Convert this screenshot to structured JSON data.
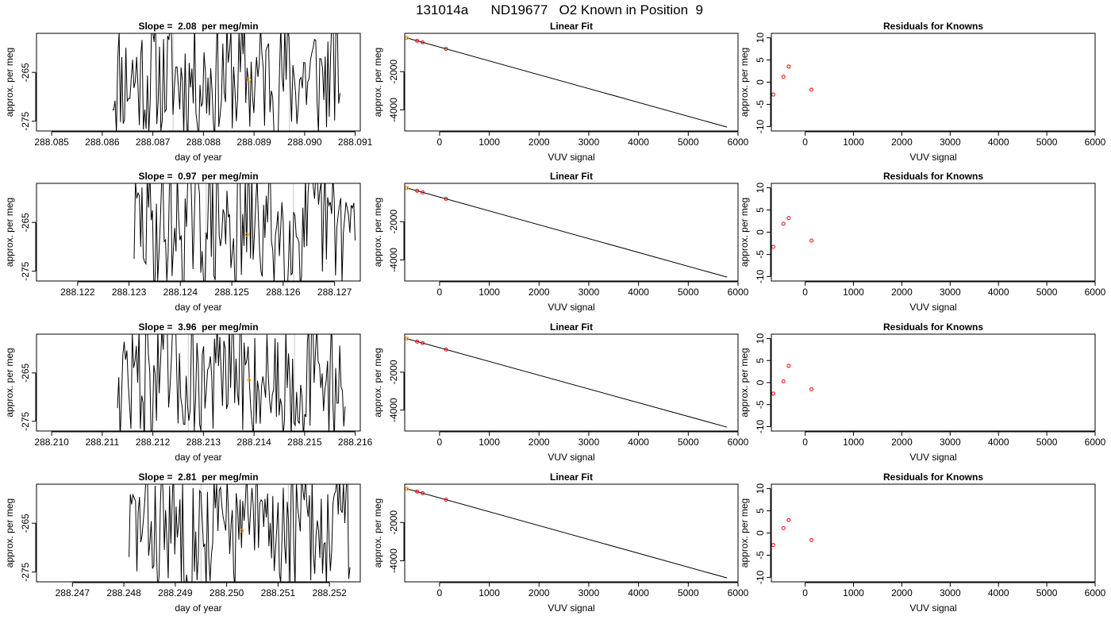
{
  "figure": {
    "title": "131014a      ND19677   O2 Known in Position  9"
  },
  "colors": {
    "trace": "#000000",
    "marker_orange": "#ffa500",
    "marker_red": "#ff0000",
    "fit_line": "#000000",
    "divider": "#c8c8c8"
  },
  "chart_data": [
    {
      "type": "line",
      "title": "Slope =  2.08  per meg/min",
      "xlabel": "day of year",
      "ylabel": "approx. per meg",
      "xlim": [
        288.0847,
        288.0911
      ],
      "ylim": [
        -277,
        -257
      ],
      "x_ticks": [
        "288.085",
        "288.086",
        "288.087",
        "288.088",
        "288.089",
        "288.090",
        "288.091"
      ],
      "x_tick_values": [
        288.085,
        288.086,
        288.087,
        288.088,
        288.089,
        288.09,
        288.091
      ],
      "y_ticks": [
        "-265",
        "-275"
      ],
      "y_tick_values": [
        -265,
        -275
      ],
      "trace_range": [
        288.0862,
        288.0907
      ],
      "trace_seed": 11,
      "dividers": [
        288.0874,
        288.0897
      ],
      "marker": {
        "x": 288.0889,
        "y": -266.5
      }
    },
    {
      "type": "scatter",
      "title": "Linear Fit",
      "xlabel": "VUV signal",
      "ylabel": "approx. per meg",
      "xlim": [
        -700,
        6000
      ],
      "ylim": [
        -5100,
        0
      ],
      "x_ticks": [
        "0",
        "1000",
        "2000",
        "3000",
        "4000",
        "5000",
        "6000"
      ],
      "x_tick_values": [
        0,
        1000,
        2000,
        3000,
        4000,
        5000,
        6000
      ],
      "y_ticks": [
        "-2000",
        "-4000"
      ],
      "y_tick_values": [
        -2000,
        -4000
      ],
      "line": [
        [
          -660,
          -237
        ],
        [
          5780,
          -4899
        ]
      ],
      "points_red": [
        [
          -660,
          -237
        ],
        [
          -450,
          -390
        ],
        [
          -340,
          -470
        ],
        [
          130,
          -810
        ]
      ],
      "point_orange": [
        -660,
        -237
      ]
    },
    {
      "type": "scatter",
      "title": "Residuals for Knowns",
      "xlabel": "VUV signal",
      "ylabel": "approx. per meg",
      "xlim": [
        -700,
        6000
      ],
      "ylim": [
        -11,
        11
      ],
      "x_ticks": [
        "0",
        "1000",
        "2000",
        "3000",
        "4000",
        "5000",
        "6000"
      ],
      "x_tick_values": [
        0,
        1000,
        2000,
        3000,
        4000,
        5000,
        6000
      ],
      "y_ticks": [
        "10",
        "5",
        "0",
        "-5",
        "-10"
      ],
      "y_tick_values": [
        10,
        5,
        0,
        -5,
        -10
      ],
      "points": [
        [
          -660,
          -2.8
        ],
        [
          -450,
          1.2
        ],
        [
          -340,
          3.5
        ],
        [
          130,
          -1.7
        ]
      ]
    },
    {
      "type": "line",
      "title": "Slope =  0.97  per meg/min",
      "xlabel": "day of year",
      "ylabel": "approx. per meg",
      "xlim": [
        288.1212,
        288.1275
      ],
      "ylim": [
        -277,
        -257
      ],
      "x_ticks": [
        "288.122",
        "288.123",
        "288.124",
        "288.125",
        "288.126",
        "288.127"
      ],
      "x_tick_values": [
        288.122,
        288.123,
        288.124,
        288.125,
        288.126,
        288.127
      ],
      "y_ticks": [
        "-265",
        "-275"
      ],
      "y_tick_values": [
        -265,
        -275
      ],
      "trace_range": [
        288.1231,
        288.1274
      ],
      "trace_seed": 29,
      "dividers": [
        288.1245,
        288.1262
      ],
      "marker": {
        "x": 288.1253,
        "y": -267.5
      }
    },
    {
      "type": "scatter",
      "title": "Linear Fit",
      "xlabel": "VUV signal",
      "ylabel": "approx. per meg",
      "xlim": [
        -700,
        6000
      ],
      "ylim": [
        -5100,
        0
      ],
      "x_ticks": [
        "0",
        "1000",
        "2000",
        "3000",
        "4000",
        "5000",
        "6000"
      ],
      "x_tick_values": [
        0,
        1000,
        2000,
        3000,
        4000,
        5000,
        6000
      ],
      "y_ticks": [
        "-2000",
        "-4000"
      ],
      "y_tick_values": [
        -2000,
        -4000
      ],
      "line": [
        [
          -660,
          -237
        ],
        [
          5780,
          -4899
        ]
      ],
      "points_red": [
        [
          -660,
          -237
        ],
        [
          -450,
          -390
        ],
        [
          -340,
          -470
        ],
        [
          130,
          -810
        ]
      ],
      "point_orange": [
        -660,
        -237
      ]
    },
    {
      "type": "scatter",
      "title": "Residuals for Knowns",
      "xlabel": "VUV signal",
      "ylabel": "approx. per meg",
      "xlim": [
        -700,
        6000
      ],
      "ylim": [
        -11,
        11
      ],
      "x_ticks": [
        "0",
        "1000",
        "2000",
        "3000",
        "4000",
        "5000",
        "6000"
      ],
      "x_tick_values": [
        0,
        1000,
        2000,
        3000,
        4000,
        5000,
        6000
      ],
      "y_ticks": [
        "10",
        "5",
        "0",
        "-5",
        "-10"
      ],
      "y_tick_values": [
        10,
        5,
        0,
        -5,
        -10
      ],
      "points": [
        [
          -660,
          -3.3
        ],
        [
          -450,
          1.9
        ],
        [
          -340,
          3.2
        ],
        [
          130,
          -1.9
        ]
      ]
    },
    {
      "type": "line",
      "title": "Slope =  3.96  per meg/min",
      "xlabel": "day of year",
      "ylabel": "approx. per meg",
      "xlim": [
        288.2097,
        288.2161
      ],
      "ylim": [
        -277,
        -257
      ],
      "x_ticks": [
        "288.210",
        "288.211",
        "288.212",
        "288.213",
        "288.214",
        "288.215",
        "288.216"
      ],
      "x_tick_values": [
        288.21,
        288.211,
        288.212,
        288.213,
        288.214,
        288.215,
        288.216
      ],
      "y_ticks": [
        "-265",
        "-275"
      ],
      "y_tick_values": [
        -265,
        -275
      ],
      "trace_range": [
        288.2113,
        288.2158
      ],
      "trace_seed": 47,
      "dividers": [
        288.2127,
        288.2148
      ],
      "marker": {
        "x": 288.2139,
        "y": -266.5
      }
    },
    {
      "type": "scatter",
      "title": "Linear Fit",
      "xlabel": "VUV signal",
      "ylabel": "approx. per meg",
      "xlim": [
        -700,
        6000
      ],
      "ylim": [
        -5100,
        0
      ],
      "x_ticks": [
        "0",
        "1000",
        "2000",
        "3000",
        "4000",
        "5000",
        "6000"
      ],
      "x_tick_values": [
        0,
        1000,
        2000,
        3000,
        4000,
        5000,
        6000
      ],
      "y_ticks": [
        "-2000",
        "-4000"
      ],
      "y_tick_values": [
        -2000,
        -4000
      ],
      "line": [
        [
          -660,
          -237
        ],
        [
          5780,
          -4899
        ]
      ],
      "points_red": [
        [
          -660,
          -237
        ],
        [
          -450,
          -390
        ],
        [
          -340,
          -470
        ],
        [
          130,
          -810
        ]
      ],
      "point_orange": [
        -660,
        -237
      ]
    },
    {
      "type": "scatter",
      "title": "Residuals for Knowns",
      "xlabel": "VUV signal",
      "ylabel": "approx. per meg",
      "xlim": [
        -700,
        6000
      ],
      "ylim": [
        -11,
        11
      ],
      "x_ticks": [
        "0",
        "1000",
        "2000",
        "3000",
        "4000",
        "5000",
        "6000"
      ],
      "x_tick_values": [
        0,
        1000,
        2000,
        3000,
        4000,
        5000,
        6000
      ],
      "y_ticks": [
        "10",
        "5",
        "0",
        "-5",
        "-10"
      ],
      "y_tick_values": [
        10,
        5,
        0,
        -5,
        -10
      ],
      "points": [
        [
          -660,
          -2.5
        ],
        [
          -450,
          0.3
        ],
        [
          -340,
          3.8
        ],
        [
          130,
          -1.5
        ]
      ]
    },
    {
      "type": "line",
      "title": "Slope =  2.81  per meg/min",
      "xlabel": "day of year",
      "ylabel": "approx. per meg",
      "xlim": [
        288.2463,
        288.2526
      ],
      "ylim": [
        -277,
        -257
      ],
      "x_ticks": [
        "288.247",
        "288.248",
        "288.249",
        "288.250",
        "288.251",
        "288.252"
      ],
      "x_tick_values": [
        288.247,
        288.248,
        288.249,
        288.25,
        288.251,
        288.252
      ],
      "y_ticks": [
        "-265",
        "-275"
      ],
      "y_tick_values": [
        -265,
        -275
      ],
      "trace_range": [
        288.2481,
        288.2524
      ],
      "trace_seed": 83,
      "dividers": [
        288.2495,
        288.2512
      ],
      "marker": {
        "x": 288.2503,
        "y": -266.5
      }
    },
    {
      "type": "scatter",
      "title": "Linear Fit",
      "xlabel": "VUV signal",
      "ylabel": "approx. per meg",
      "xlim": [
        -700,
        6000
      ],
      "ylim": [
        -5100,
        0
      ],
      "x_ticks": [
        "0",
        "1000",
        "2000",
        "3000",
        "4000",
        "5000",
        "6000"
      ],
      "x_tick_values": [
        0,
        1000,
        2000,
        3000,
        4000,
        5000,
        6000
      ],
      "y_ticks": [
        "-2000",
        "-4000"
      ],
      "y_tick_values": [
        -2000,
        -4000
      ],
      "line": [
        [
          -660,
          -237
        ],
        [
          5780,
          -4899
        ]
      ],
      "points_red": [
        [
          -660,
          -237
        ],
        [
          -450,
          -390
        ],
        [
          -340,
          -470
        ],
        [
          130,
          -810
        ]
      ],
      "point_orange": [
        -660,
        -237
      ]
    },
    {
      "type": "scatter",
      "title": "Residuals for Knowns",
      "xlabel": "VUV signal",
      "ylabel": "approx. per meg",
      "xlim": [
        -700,
        6000
      ],
      "ylim": [
        -11,
        11
      ],
      "x_ticks": [
        "0",
        "1000",
        "2000",
        "3000",
        "4000",
        "5000",
        "6000"
      ],
      "x_tick_values": [
        0,
        1000,
        2000,
        3000,
        4000,
        5000,
        6000
      ],
      "y_ticks": [
        "10",
        "5",
        "0",
        "-5",
        "-10"
      ],
      "y_tick_values": [
        10,
        5,
        0,
        -5,
        -10
      ],
      "points": [
        [
          -660,
          -2.7
        ],
        [
          -450,
          1.1
        ],
        [
          -340,
          2.9
        ],
        [
          130,
          -1.6
        ]
      ]
    }
  ]
}
